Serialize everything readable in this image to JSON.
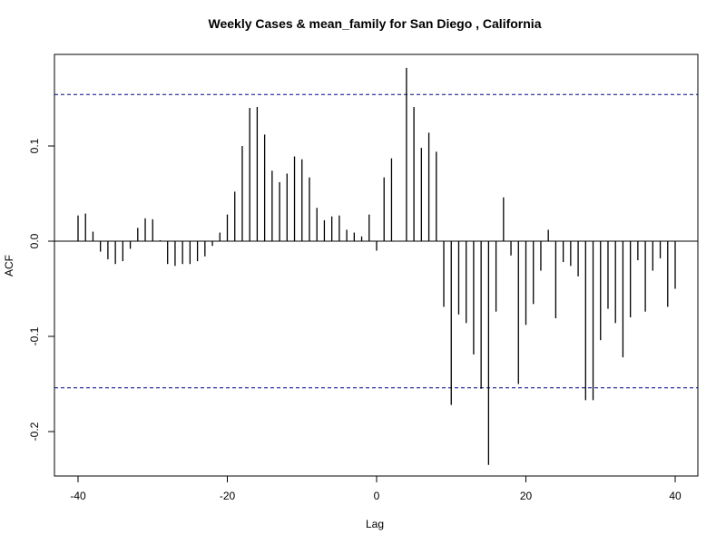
{
  "chart_data": {
    "type": "bar",
    "title": "Weekly Cases & mean_family for San Diego , California",
    "xlabel": "Lag",
    "ylabel": "ACF",
    "xlim": [
      -42,
      43
    ],
    "ylim": [
      -0.25,
      0.2
    ],
    "x_ticks": [
      -40,
      -20,
      0,
      20,
      40
    ],
    "x_tick_labels": [
      "-40",
      "-20",
      "0",
      "20",
      "40"
    ],
    "y_ticks": [
      -0.2,
      -0.1,
      0.0,
      0.1
    ],
    "y_tick_labels": [
      "-0.2",
      "-0.1",
      "0.0",
      "0.1"
    ],
    "confidence_bounds": [
      0.154,
      -0.154
    ],
    "colors": {
      "bars": "#000000",
      "bounds": "#00008B",
      "zero_line": "#000000"
    },
    "lags": [
      -40,
      -39,
      -38,
      -37,
      -36,
      -35,
      -34,
      -33,
      -32,
      -31,
      -30,
      -29,
      -28,
      -27,
      -26,
      -25,
      -24,
      -23,
      -22,
      -21,
      -20,
      -19,
      -18,
      -17,
      -16,
      -15,
      -14,
      -13,
      -12,
      -11,
      -10,
      -9,
      -8,
      -7,
      -6,
      -5,
      -4,
      -3,
      -2,
      -1,
      0,
      1,
      2,
      3,
      4,
      5,
      6,
      7,
      8,
      9,
      10,
      11,
      12,
      13,
      14,
      15,
      16,
      17,
      18,
      19,
      20,
      21,
      22,
      23,
      24,
      25,
      26,
      27,
      28,
      29,
      30,
      31,
      32,
      33,
      34,
      35,
      36,
      37,
      38,
      39,
      40
    ],
    "values": [
      0.027,
      0.029,
      0.01,
      -0.011,
      -0.019,
      -0.024,
      -0.021,
      -0.008,
      0.014,
      0.024,
      0.023,
      0.001,
      -0.024,
      -0.026,
      -0.024,
      -0.024,
      -0.021,
      -0.016,
      -0.005,
      0.009,
      0.028,
      0.052,
      0.1,
      0.14,
      0.141,
      0.112,
      0.074,
      0.062,
      0.071,
      0.089,
      0.086,
      0.067,
      0.035,
      0.022,
      0.026,
      0.027,
      0.012,
      0.009,
      0.005,
      0.028,
      -0.01,
      0.067,
      0.087,
      0.0,
      0.182,
      0.141,
      0.098,
      0.114,
      0.094,
      -0.069,
      -0.172,
      -0.077,
      -0.086,
      -0.119,
      -0.155,
      -0.235,
      -0.074,
      0.046,
      -0.015,
      -0.15,
      -0.088,
      -0.066,
      -0.031,
      0.012,
      -0.081,
      -0.022,
      -0.026,
      -0.037,
      -0.167,
      -0.167,
      -0.104,
      -0.071,
      -0.086,
      -0.122,
      -0.08,
      -0.02,
      -0.074,
      -0.031,
      -0.018,
      -0.069,
      -0.05
    ]
  }
}
